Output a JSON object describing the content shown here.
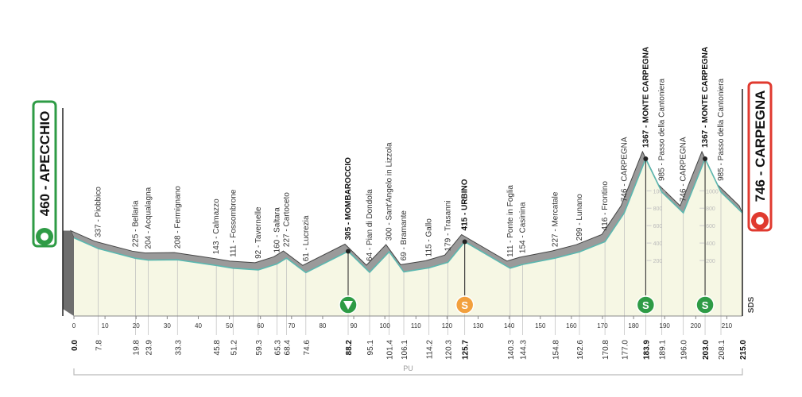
{
  "chart_data": {
    "type": "profile",
    "start": {
      "label": "460 - APECCHIO",
      "elevation": 460,
      "km": {
        "value": 0,
        "label": "0.0"
      },
      "color": "#2e9b45"
    },
    "finish": {
      "label": "746 - CARPEGNA",
      "elevation": 746,
      "km": {
        "value": 215,
        "label": "215.0"
      },
      "color": "#e03a2f"
    },
    "waypoints": [
      {
        "label": "337 - Piobbico",
        "elevation": 337,
        "km": 7.8
      },
      {
        "label": "225 - Bellaria",
        "elevation": 225,
        "km": 19.8
      },
      {
        "label": "204 - Acqualagna",
        "elevation": 204,
        "km": 23.9
      },
      {
        "label": "208 - Fermignano",
        "elevation": 208,
        "km": 33.3
      },
      {
        "label": "143 - Calmazzo",
        "elevation": 143,
        "km": 45.8
      },
      {
        "label": "111 - Fossombrone",
        "elevation": 111,
        "km": 51.2
      },
      {
        "label": "92 - Tavernelle",
        "elevation": 92,
        "km": 59.3
      },
      {
        "label": "160 - Saltara",
        "elevation": 160,
        "km": 65.3
      },
      {
        "label": "227 - Cartoceto",
        "elevation": 227,
        "km": 68.4
      },
      {
        "label": "61 - Lucrezia",
        "elevation": 61,
        "km": 74.6
      },
      {
        "label": "305 - MOMBAROCCIO",
        "elevation": 305,
        "km": 88.2,
        "bold": true
      },
      {
        "label": "64 - Pian di Dondola",
        "elevation": 64,
        "km": 95.1
      },
      {
        "label": "300 - Sant'Angelo in Lizzola",
        "elevation": 300,
        "km": 101.4
      },
      {
        "label": "69 - Bramante",
        "elevation": 69,
        "km": 106.1
      },
      {
        "label": "115 - Gallo",
        "elevation": 115,
        "km": 114.2
      },
      {
        "label": "179 - Trasanni",
        "elevation": 179,
        "km": 120.3
      },
      {
        "label": "415 - URBINO",
        "elevation": 415,
        "km": 125.7,
        "bold": true
      },
      {
        "label": "111 - Ponte in Foglia",
        "elevation": 111,
        "km": 140.3
      },
      {
        "label": "154 - Casinina",
        "elevation": 154,
        "km": 144.3
      },
      {
        "label": "227 - Mercatale",
        "elevation": 227,
        "km": 154.8
      },
      {
        "label": "299 - Lunano",
        "elevation": 299,
        "km": 162.6
      },
      {
        "label": "416 - Frontino",
        "elevation": 416,
        "km": 170.8
      },
      {
        "label": "746 - CARPEGNA",
        "elevation": 746,
        "km": {
          "value": 177,
          "label": "177.0"
        }
      },
      {
        "label": "1367 - MONTE CARPEGNA",
        "elevation": 1367,
        "km": 183.9,
        "bold": true
      },
      {
        "label": "985 - Passo della Cantoniera",
        "elevation": 985,
        "km": 189.1
      },
      {
        "label": "746 - CARPEGNA",
        "elevation": 746,
        "km": {
          "value": 196,
          "label": "196.0"
        }
      },
      {
        "label": "1367 - MONTE CARPEGNA",
        "elevation": 1367,
        "km": {
          "value": 203,
          "label": "203.0"
        },
        "bold": true
      },
      {
        "label": "985 - Passo della Cantoniera",
        "elevation": 985,
        "km": 208.1
      }
    ],
    "xlim": [
      0,
      215
    ],
    "xticks": [
      0,
      10,
      20,
      30,
      40,
      50,
      60,
      70,
      80,
      90,
      100,
      110,
      120,
      130,
      140,
      150,
      160,
      170,
      180,
      190,
      200,
      210
    ],
    "ylim": [
      0,
      1367
    ],
    "elevation_ticks": [
      200,
      400,
      600,
      800,
      1000
    ],
    "icons": [
      {
        "km": 88.2,
        "color": "#2e9b45"
      },
      {
        "km": 125.7,
        "color": "#f2a03d",
        "text": "S"
      },
      {
        "km": 183.9,
        "color": "#2e9b45",
        "text": "S"
      },
      {
        "km": 203,
        "color": "#2e9b45",
        "text": "S"
      }
    ],
    "segment": {
      "label": "PU",
      "from": 0,
      "to": 215
    },
    "logo": "SDS"
  }
}
